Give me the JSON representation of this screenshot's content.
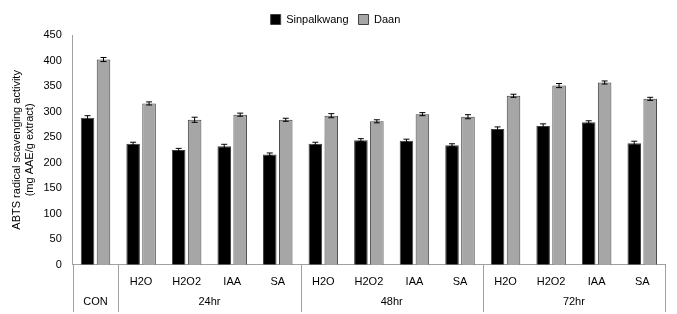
{
  "chart_data": {
    "type": "bar",
    "y_label": [
      "ABTS radical scavenging activity",
      "(mg AAE/g extract)"
    ],
    "categories": [
      null,
      "H2O",
      "H2O2",
      "IAA",
      "SA",
      "H2O",
      "H2O2",
      "IAA",
      "SA",
      "H2O",
      "H2O2",
      "IAA",
      "SA"
    ],
    "groups": [
      "CON",
      "24hr",
      "48hr",
      "72hr"
    ],
    "group_sizes": [
      1,
      4,
      4,
      4
    ],
    "series": [
      {
        "name": "Sinpalkwang",
        "color": "#000000",
        "values": [
          288,
          237,
          225,
          232,
          216,
          237,
          244,
          243,
          234,
          266,
          272,
          279,
          238
        ],
        "errors": [
          4,
          3,
          3,
          4,
          3,
          3,
          3,
          3,
          3,
          4,
          4,
          3,
          4
        ]
      },
      {
        "name": "Daan",
        "color": "#a6a6a6",
        "values": [
          402,
          316,
          284,
          294,
          284,
          292,
          281,
          295,
          290,
          331,
          351,
          357,
          325
        ],
        "errors": [
          4,
          3,
          5,
          3,
          3,
          4,
          3,
          3,
          4,
          3,
          4,
          3,
          3
        ]
      }
    ],
    "ylim": [
      0,
      450
    ],
    "yticks": [
      0,
      50,
      100,
      150,
      200,
      250,
      300,
      350,
      400,
      450
    ],
    "grid": false,
    "legend": "top"
  }
}
